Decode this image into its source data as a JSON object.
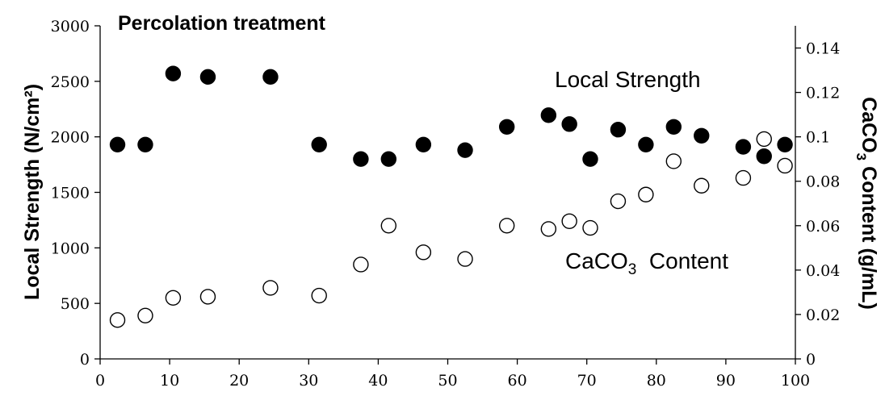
{
  "chart_data": {
    "type": "scatter",
    "title": "Percolation treatment",
    "xlabel": "",
    "xlim": [
      0,
      100
    ],
    "xticks": [
      0,
      10,
      20,
      30,
      40,
      50,
      60,
      70,
      80,
      90,
      100
    ],
    "y_left": {
      "label": "Local Strength (N/cm²)",
      "lim": [
        0,
        3000
      ],
      "ticks": [
        0,
        500,
        1000,
        1500,
        2000,
        2500,
        3000
      ]
    },
    "y_right": {
      "label_parts": [
        "CaCO",
        "3",
        " Content (g/mL)"
      ],
      "lim": [
        0,
        0.15
      ],
      "ticks": [
        0,
        0.02,
        0.04,
        0.06,
        0.08,
        0.1,
        0.12,
        0.14
      ],
      "tick_labels": [
        "0",
        "0.02",
        "0.04",
        "0.06",
        "0.08",
        "0.1",
        "0.12",
        "0.14"
      ]
    },
    "series": [
      {
        "axis": "left",
        "marker": "filled-circle",
        "color": "#000000",
        "annotation": "Local Strength",
        "points": [
          [
            2.5,
            1930
          ],
          [
            6.5,
            1930
          ],
          [
            10.5,
            2570
          ],
          [
            15.5,
            2540
          ],
          [
            24.5,
            2540
          ],
          [
            31.5,
            1930
          ],
          [
            37.5,
            1800
          ],
          [
            41.5,
            1800
          ],
          [
            46.5,
            1930
          ],
          [
            52.5,
            1880
          ],
          [
            58.5,
            2090
          ],
          [
            64.5,
            2195
          ],
          [
            67.5,
            2115
          ],
          [
            70.5,
            1800
          ],
          [
            74.5,
            2065
          ],
          [
            78.5,
            1930
          ],
          [
            82.5,
            2090
          ],
          [
            86.5,
            2010
          ],
          [
            92.5,
            1910
          ],
          [
            95.5,
            1825
          ],
          [
            98.5,
            1930
          ]
        ]
      },
      {
        "axis": "right",
        "marker": "open-circle",
        "color": "#000000",
        "annotation_parts": [
          "CaCO",
          "3",
          "  Content"
        ],
        "points": [
          [
            2.5,
            0.0175
          ],
          [
            6.5,
            0.0195
          ],
          [
            10.5,
            0.0275
          ],
          [
            15.5,
            0.028
          ],
          [
            24.5,
            0.032
          ],
          [
            31.5,
            0.0285
          ],
          [
            37.5,
            0.0425
          ],
          [
            41.5,
            0.06
          ],
          [
            46.5,
            0.048
          ],
          [
            52.5,
            0.045
          ],
          [
            58.5,
            0.06
          ],
          [
            64.5,
            0.0585
          ],
          [
            67.5,
            0.062
          ],
          [
            70.5,
            0.059
          ],
          [
            74.5,
            0.071
          ],
          [
            78.5,
            0.074
          ],
          [
            82.5,
            0.089
          ],
          [
            86.5,
            0.078
          ],
          [
            92.5,
            0.0815
          ],
          [
            95.5,
            0.099
          ],
          [
            98.5,
            0.087
          ]
        ]
      }
    ]
  }
}
